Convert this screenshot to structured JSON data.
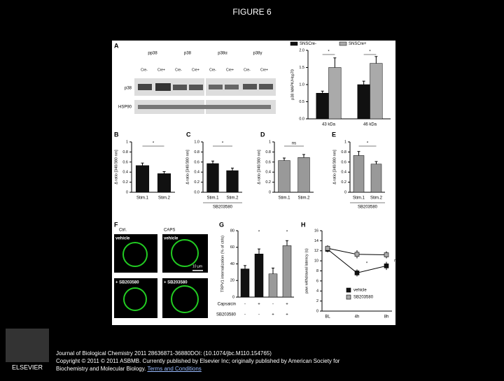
{
  "header": {
    "title": "FIGURE 6"
  },
  "figure": {
    "panel_a": {
      "label": "A",
      "blot_columns": [
        "pp38",
        "p38",
        "p38α",
        "p38γ"
      ],
      "lane_labels": [
        "Cre-",
        "Cre+",
        "Cre-",
        "Cre+",
        "Cre-",
        "Cre+",
        "Cre-",
        "Cre+"
      ],
      "blot_rows": [
        "p38",
        "HSP90"
      ],
      "chart": {
        "type": "bar",
        "y_label": "p38 MAPK/Hsp70",
        "categories": [
          "43 kDa",
          "46 kDa"
        ],
        "series": [
          {
            "name": "SNSCre-",
            "color": "#111111",
            "values": [
              0.75,
              1.0
            ],
            "errors": [
              0.06,
              0.1
            ]
          },
          {
            "name": "SNSCre+",
            "color": "#aaaaaa",
            "values": [
              1.5,
              1.62
            ],
            "errors": [
              0.28,
              0.2
            ]
          }
        ],
        "ylim": [
          0,
          2.0
        ],
        "yticks": [
          {
            "value": 0,
            "label": "0.0"
          },
          {
            "value": 0.5,
            "label": "0.5"
          },
          {
            "value": 1,
            "label": "1.0"
          },
          {
            "value": 1.5,
            "label": "1.5"
          },
          {
            "value": 2,
            "label": "2.0"
          }
        ],
        "annotations": [
          "*",
          "*"
        ]
      }
    },
    "panel_b": {
      "label": "B",
      "chart": {
        "type": "bar",
        "y_label": "Δ ratio [340/380 nm]",
        "categories": [
          "Stim.1",
          "Stim.2"
        ],
        "series": [
          {
            "color": "#111111",
            "values": [
              0.53,
              0.37
            ],
            "errors": [
              0.05,
              0.04
            ]
          }
        ],
        "ylim": [
          0,
          1
        ],
        "yticks": [
          0,
          0.2,
          0.4,
          0.6,
          0.8,
          1
        ],
        "annotations": [
          "*"
        ]
      }
    },
    "panel_c": {
      "label": "C",
      "chart": {
        "type": "bar",
        "y_label": "Δ ratio [340/380 nm]",
        "categories": [
          "Stim.1",
          "Stim.2"
        ],
        "series": [
          {
            "color": "#111111",
            "values": [
              0.57,
              0.43
            ],
            "errors": [
              0.05,
              0.05
            ]
          }
        ],
        "ylim": [
          0,
          1
        ],
        "yticks": [
          {
            "value": 0,
            "label": "0.0"
          },
          0.2,
          0.4,
          0.6,
          0.8,
          {
            "value": 1,
            "label": "1.0"
          }
        ],
        "annotations": [
          "*"
        ],
        "sublabel": "SB203580"
      }
    },
    "panel_d": {
      "label": "D",
      "chart": {
        "type": "bar",
        "y_label": "Δ ratio [340/380 nm]",
        "categories": [
          "Stim.1",
          "Stim.2"
        ],
        "series": [
          {
            "color": "#999999",
            "values": [
              0.63,
              0.69
            ],
            "errors": [
              0.05,
              0.06
            ]
          }
        ],
        "ylim": [
          0,
          1
        ],
        "yticks": [
          0,
          0.2,
          0.4,
          0.6,
          0.8,
          1
        ],
        "annotations": [
          "ns"
        ]
      }
    },
    "panel_e": {
      "label": "E",
      "chart": {
        "type": "bar",
        "y_label": "Δ ratio [340/380 nm]",
        "categories": [
          "Stim.1",
          "Stim.2"
        ],
        "series": [
          {
            "color": "#999999",
            "values": [
              0.73,
              0.56
            ],
            "errors": [
              0.08,
              0.05
            ]
          }
        ],
        "ylim": [
          0,
          1
        ],
        "yticks": [
          0,
          0.2,
          0.4,
          0.6,
          0.8,
          1
        ],
        "annotations": [
          "*"
        ],
        "sublabel": "SB203580"
      }
    },
    "panel_f": {
      "label": "F",
      "column_labels": [
        "Ctrl.",
        "CAPS"
      ],
      "image_labels": [
        "vehicle",
        "vehicle",
        "+ SB203580",
        "+ SB203580"
      ],
      "scale_bar": "10 µm"
    },
    "panel_g": {
      "label": "G",
      "chart": {
        "type": "bar",
        "y_label": "TRPV1 internalization (% of ctrls)",
        "categories": [
          null,
          null,
          null,
          null
        ],
        "series": [
          {
            "colors": [
              "#111111",
              "#111111",
              "#999999",
              "#999999"
            ],
            "values": [
              34,
              52,
              28,
              62
            ],
            "errors": [
              4,
              6,
              7,
              6
            ]
          }
        ],
        "ylim": [
          0,
          80
        ],
        "yticks": [
          0,
          20,
          40,
          60,
          80
        ],
        "annotations": [
          "*",
          "*"
        ],
        "rows": [
          {
            "name": "Capsaicin",
            "marks": [
              "-",
              "+",
              "-",
              "+"
            ]
          },
          {
            "name": "SB203580",
            "marks": [
              "-",
              "-",
              "+",
              "+"
            ]
          }
        ]
      }
    },
    "panel_h": {
      "label": "H",
      "chart": {
        "type": "line",
        "y_label": "paw withdrawal latency (s)",
        "categories": [
          "BL",
          "4h",
          "8h"
        ],
        "series": [
          {
            "name": "vehicle",
            "color": "#111111",
            "values": [
              12.3,
              7.6,
              9.0
            ],
            "errors": [
              0.6,
              0.7,
              0.8
            ]
          },
          {
            "name": "SB203580",
            "color": "#aaaaaa",
            "values": [
              12.5,
              11.3,
              11.2
            ],
            "errors": [
              0.6,
              0.8,
              0.7
            ]
          }
        ],
        "ylim": [
          0,
          16
        ],
        "yticks": [
          0,
          2,
          4,
          6,
          8,
          10,
          12,
          14,
          16
        ],
        "annotations": [
          "ns",
          "*"
        ]
      }
    }
  },
  "caption": {
    "citation": "Journal of Biological Chemistry 2011 28636871-36880DOI: (10.1074/jbc.M110.154765)",
    "copyright": "Copyright © 2011 © 2011 ASBMB. Currently published by Elsevier Inc; originally published by American Society for Biochemistry and Molecular Biology.",
    "link": "Terms and Conditions"
  },
  "logo": {
    "text": "ELSEVIER"
  }
}
